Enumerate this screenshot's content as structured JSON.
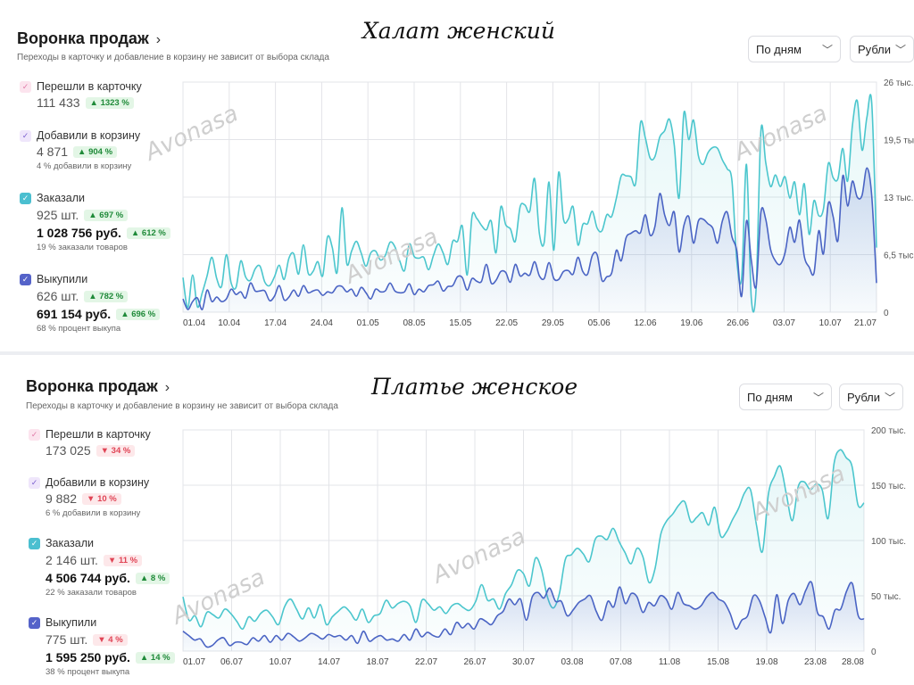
{
  "panels": [
    {
      "product_title": "Халат женский",
      "heading": "Воронка продаж",
      "subtitle": "Переходы в карточку и добавление в корзину не зависит от выбора склада",
      "period_select": "По дням",
      "currency_select": "Рубли",
      "metrics": [
        {
          "label": "Перешли в карточку",
          "value": "111 433",
          "change": "1323 %",
          "dir": "up",
          "note": ""
        },
        {
          "label": "Добавили в корзину",
          "value": "4 871",
          "change": "904 %",
          "dir": "up",
          "note": "4 % добавили в корзину"
        },
        {
          "label": "Заказали",
          "value": "925 шт.",
          "change": "697 %",
          "dir": "up",
          "value2": "1 028 756 руб.",
          "change2": "612 %",
          "dir2": "up",
          "note": "19 % заказали товаров"
        },
        {
          "label": "Выкупили",
          "value": "626 шт.",
          "change": "782 %",
          "dir": "up",
          "value2": "691 154 руб.",
          "change2": "696 %",
          "dir2": "up",
          "note": "68 % процент выкупа"
        }
      ],
      "watermark": "Avonasa"
    },
    {
      "product_title": "Платье женское",
      "heading": "Воронка продаж",
      "subtitle": "Переходы в карточку и добавление в корзину не зависит от выбора склада",
      "period_select": "По дням",
      "currency_select": "Рубли",
      "metrics": [
        {
          "label": "Перешли в карточку",
          "value": "173 025",
          "change": "34 %",
          "dir": "down",
          "note": ""
        },
        {
          "label": "Добавили в корзину",
          "value": "9 882",
          "change": "10 %",
          "dir": "down",
          "note": "6 % добавили в корзину"
        },
        {
          "label": "Заказали",
          "value": "2 146 шт.",
          "change": "11 %",
          "dir": "down",
          "value2": "4 506 744 руб.",
          "change2": "8 %",
          "dir2": "up",
          "note": "22 % заказали товаров"
        },
        {
          "label": "Выкупили",
          "value": "775 шт.",
          "change": "4 %",
          "dir": "down",
          "value2": "1 595 250 руб.",
          "change2": "14 %",
          "dir2": "up",
          "note": "38 % процент выкупа"
        }
      ],
      "watermark": "Avonasa"
    }
  ],
  "colors": {
    "cyan": "#4bc6cd",
    "blue": "#4a64c4",
    "pink": "#ef8fb6",
    "purple": "#7b5fcf",
    "teal": "#4bbfd0",
    "indigo": "#5563c9"
  },
  "chart_data": [
    {
      "type": "line",
      "x_ticks": [
        "01.04",
        "10.04",
        "17.04",
        "24.04",
        "01.05",
        "08.05",
        "15.05",
        "22.05",
        "29.05",
        "05.06",
        "12.06",
        "19.06",
        "26.06",
        "03.07",
        "10.07",
        "21.07"
      ],
      "y_ticks": [
        "26 тыс.",
        "19,5 тыс.",
        "13 тыс.",
        "6,5 тыс.",
        "0"
      ],
      "ylim": [
        0,
        26000
      ],
      "series": [
        {
          "values": [
            3900,
            500,
            4200,
            600,
            2200,
            4100,
            6200,
            3800,
            2900,
            6500,
            3300,
            2800,
            5800,
            4000,
            3600,
            4900,
            5200,
            3400,
            3000,
            4000,
            5300,
            3700,
            6100,
            6600,
            4300,
            7600,
            4400,
            4600,
            5700,
            4100,
            8500,
            7300,
            4500,
            11800,
            5500,
            6900,
            8000,
            6700,
            5200,
            6700,
            6900,
            5900,
            6400,
            7900,
            7400,
            5800,
            4700,
            7700,
            6300,
            6100,
            6200,
            4800,
            6400,
            7700,
            6700,
            5400,
            8000,
            8000,
            9700,
            4200,
            10800,
            10600,
            9800,
            9300,
            10300,
            6700,
            11900,
            9900,
            9400,
            8000,
            11900,
            12100,
            11400,
            15100,
            8900,
            7900,
            14700,
            7000,
            15800,
            10500,
            10500,
            11900,
            7600,
            9900,
            10000,
            11400,
            9500,
            9200,
            11000,
            10800,
            12900,
            15400,
            15400,
            15300,
            14600,
            21400,
            19700,
            17400,
            17600,
            19800,
            20500,
            21800,
            18900,
            12900,
            22500,
            19500,
            21700,
            17700,
            16700,
            18000,
            18600,
            18500,
            17200,
            16200,
            14800,
            5800,
            3900,
            16700,
            1600,
            2600,
            20500,
            16900,
            14200,
            15500,
            14200,
            15300,
            12900,
            14700,
            11000,
            14500,
            8800,
            12600,
            10900,
            11700,
            16800,
            15200,
            15100,
            18500,
            14800,
            21100,
            23900,
            18300,
            22000,
            23700,
            7300
          ]
        },
        {
          "values": [
            1500,
            300,
            1200,
            1600,
            300,
            2500,
            1200,
            1700,
            1200,
            1500,
            2600,
            2000,
            2300,
            1600,
            3300,
            2400,
            2400,
            2400,
            1300,
            1800,
            3000,
            1400,
            1700,
            2500,
            1800,
            3000,
            2200,
            2400,
            2500,
            1900,
            2300,
            2200,
            2900,
            2900,
            2300,
            2600,
            1800,
            2800,
            2200,
            1500,
            2600,
            2300,
            2400,
            3300,
            2400,
            2200,
            2300,
            3200,
            2000,
            2600,
            2300,
            3000,
            3100,
            3500,
            2400,
            2900,
            3000,
            4000,
            3900,
            2500,
            3800,
            3500,
            3500,
            5400,
            3300,
            3600,
            4600,
            4500,
            3400,
            5400,
            4100,
            4400,
            4200,
            5700,
            4100,
            3800,
            5600,
            3800,
            3700,
            4600,
            4700,
            4300,
            6200,
            4600,
            4300,
            6400,
            6500,
            3600,
            4000,
            4400,
            7000,
            5800,
            8400,
            8900,
            9200,
            9000,
            11000,
            8700,
            9700,
            13400,
            11000,
            9800,
            11300,
            6800,
            9800,
            10800,
            7800,
            10300,
            10500,
            10000,
            9500,
            7800,
            10300,
            11300,
            8500,
            6900,
            1800,
            10300,
            5900,
            2900,
            11300,
            10500,
            7100,
            5800,
            5400,
            6700,
            9600,
            7900,
            10400,
            6300,
            5100,
            4400,
            9200,
            6600,
            12300,
            10800,
            8100,
            15400,
            12000,
            14800,
            13000,
            13200,
            16300,
            13200,
            3300
          ]
        }
      ]
    },
    {
      "type": "line",
      "x_ticks": [
        "01.07",
        "06.07",
        "10.07",
        "14.07",
        "18.07",
        "22.07",
        "26.07",
        "30.07",
        "03.08",
        "07.08",
        "11.08",
        "15.08",
        "19.08",
        "23.08",
        "28.08"
      ],
      "y_ticks": [
        "200 тыс.",
        "150 тыс.",
        "100 тыс.",
        "50 тыс.",
        "0"
      ],
      "ylim": [
        0,
        200000
      ],
      "series": [
        {
          "values": [
            49000,
            28000,
            32000,
            22000,
            35000,
            33000,
            30000,
            38000,
            34000,
            27000,
            20000,
            31000,
            27000,
            34000,
            37000,
            31000,
            24000,
            40000,
            47000,
            38000,
            29000,
            39000,
            30000,
            42000,
            24000,
            31000,
            36000,
            40000,
            35000,
            28000,
            38000,
            26000,
            32000,
            34000,
            46000,
            39000,
            43000,
            45000,
            41000,
            26000,
            46000,
            43000,
            37000,
            40000,
            34000,
            41000,
            43000,
            39000,
            37000,
            45000,
            60000,
            46000,
            47000,
            38000,
            52000,
            60000,
            73000,
            70000,
            59000,
            84000,
            74000,
            49000,
            39000,
            52000,
            83000,
            87000,
            93000,
            88000,
            81000,
            101000,
            104000,
            101000,
            111000,
            99000,
            89000,
            79000,
            93000,
            85000,
            62000,
            74000,
            106000,
            118000,
            124000,
            132000,
            135000,
            117000,
            121000,
            125000,
            114000,
            130000,
            104000,
            108000,
            119000,
            129000,
            143000,
            146000,
            114000,
            90000,
            142000,
            158000,
            167000,
            142000,
            118000,
            149000,
            153000,
            146000,
            151000,
            146000,
            120000,
            170000,
            182000,
            175000,
            167000,
            132000,
            134000
          ]
        },
        {
          "values": [
            18000,
            14000,
            10000,
            11000,
            4000,
            5000,
            10000,
            12000,
            5000,
            8000,
            8000,
            6000,
            12000,
            9000,
            14000,
            8000,
            14000,
            10000,
            16000,
            13000,
            9000,
            12000,
            16000,
            14000,
            11000,
            15000,
            13000,
            14000,
            10000,
            14000,
            7000,
            18000,
            9000,
            12000,
            14000,
            10000,
            11000,
            9000,
            15000,
            10000,
            20000,
            13000,
            17000,
            14000,
            13000,
            20000,
            15000,
            26000,
            21000,
            25000,
            20000,
            29000,
            27000,
            24000,
            32000,
            36000,
            47000,
            42000,
            47000,
            28000,
            49000,
            53000,
            48000,
            57000,
            45000,
            45000,
            32000,
            37000,
            44000,
            47000,
            50000,
            36000,
            28000,
            45000,
            40000,
            58000,
            43000,
            52000,
            49000,
            35000,
            44000,
            41000,
            50000,
            47000,
            38000,
            53000,
            43000,
            41000,
            38000,
            41000,
            49000,
            53000,
            47000,
            44000,
            34000,
            20000,
            28000,
            32000,
            50000,
            46000,
            31000,
            17000,
            51000,
            25000,
            46000,
            52000,
            42000,
            55000,
            62000,
            35000,
            31000,
            20000,
            37000,
            38000,
            54000,
            61000,
            32000,
            29000
          ]
        }
      ]
    }
  ]
}
